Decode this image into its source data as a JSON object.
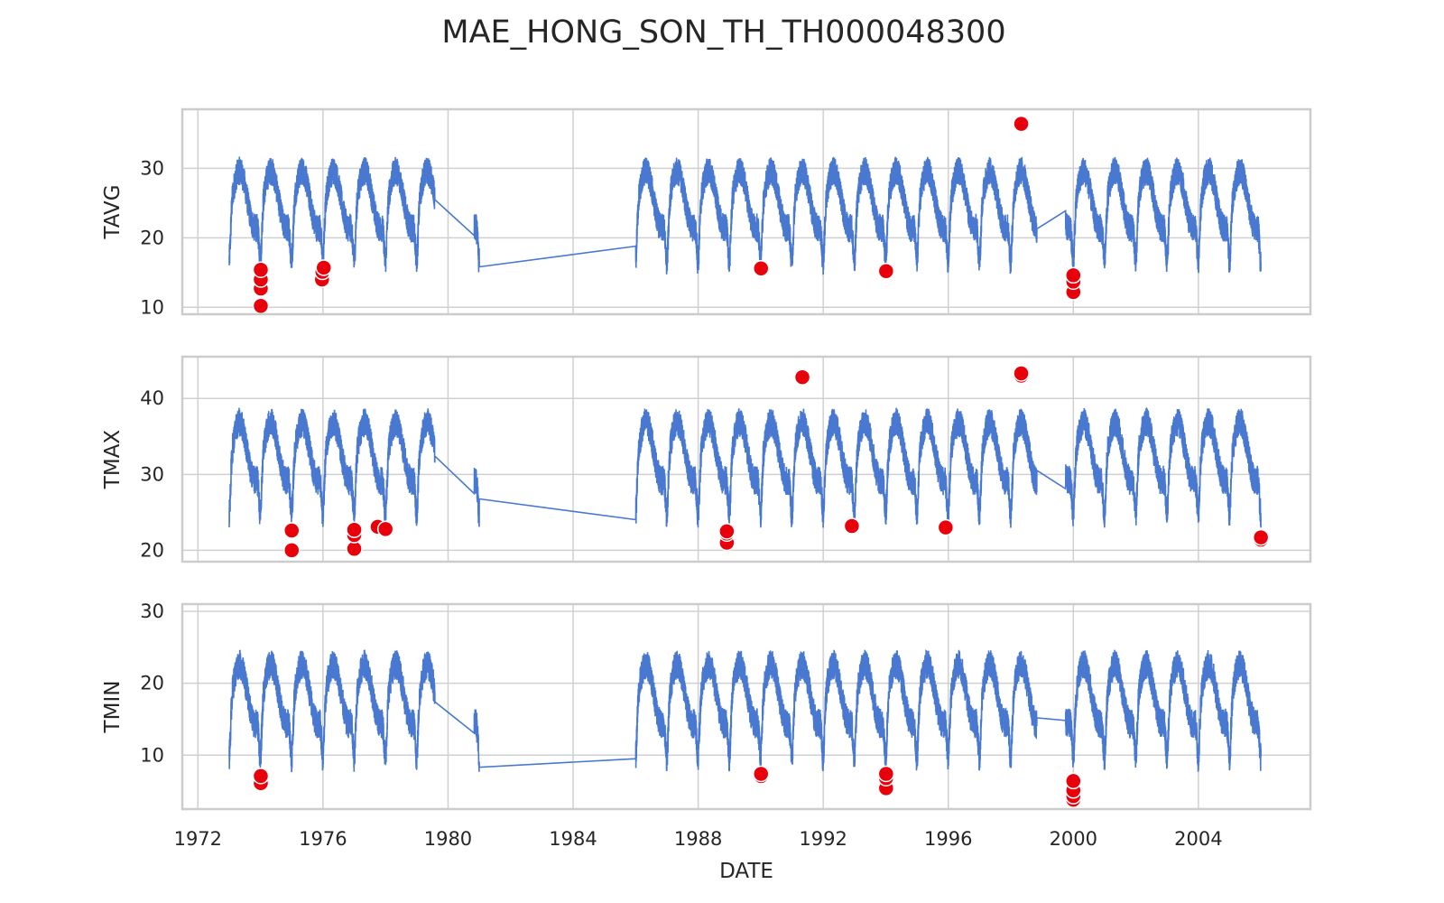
{
  "chart_data": {
    "type": "line",
    "title": "MAE_HONG_SON_TH_TH000048300",
    "xlabel": "DATE",
    "x_range": [
      "1971-07-01",
      "2007-08-01"
    ],
    "x_ticks": [
      "1972",
      "1976",
      "1980",
      "1984",
      "1988",
      "1992",
      "1996",
      "2000",
      "2004"
    ],
    "grid": true,
    "line_color": "#4878CF",
    "marker_color": "#E8000B",
    "data_gaps": [
      [
        "1979-08-01",
        "1980-11-01"
      ],
      [
        "1981-01-01",
        "1986-01-01"
      ],
      [
        "1998-11-01",
        "1999-10-01"
      ]
    ],
    "panels": [
      {
        "ylabel": "TAVG",
        "ylim": [
          9,
          38.5
        ],
        "yticks": [
          "10",
          "20",
          "30"
        ],
        "line_approx": {
          "first_date": "1973-01-01",
          "last_date": "2006-01-01",
          "seasonal_low": 18,
          "seasonal_high": 33,
          "mean": 26
        },
        "anomalies": [
          {
            "date": "1974-01-05",
            "value": 10.2
          },
          {
            "date": "1974-01-05",
            "value": 12.7
          },
          {
            "date": "1974-01-05",
            "value": 14.0
          },
          {
            "date": "1974-01-05",
            "value": 15.4
          },
          {
            "date": "1975-12-20",
            "value": 14.0
          },
          {
            "date": "1975-12-25",
            "value": 15.1
          },
          {
            "date": "1976-01-10",
            "value": 15.7
          },
          {
            "date": "1990-01-05",
            "value": 15.6
          },
          {
            "date": "1994-01-05",
            "value": 15.2
          },
          {
            "date": "1998-05-01",
            "value": 36.4
          },
          {
            "date": "2000-01-01",
            "value": 12.2
          },
          {
            "date": "2000-01-01",
            "value": 13.7
          },
          {
            "date": "2000-01-01",
            "value": 14.6
          }
        ]
      },
      {
        "ylabel": "TMAX",
        "ylim": [
          18.5,
          45.5
        ],
        "yticks": [
          "20",
          "30",
          "40"
        ],
        "line_approx": {
          "first_date": "1973-01-01",
          "last_date": "2006-01-01",
          "seasonal_low": 26,
          "seasonal_high": 40,
          "mean": 32
        },
        "anomalies": [
          {
            "date": "1975-01-01",
            "value": 20.0
          },
          {
            "date": "1975-01-01",
            "value": 22.6
          },
          {
            "date": "1977-01-01",
            "value": 20.2
          },
          {
            "date": "1977-01-01",
            "value": 22.0
          },
          {
            "date": "1977-01-01",
            "value": 22.7
          },
          {
            "date": "1977-10-01",
            "value": 23.1
          },
          {
            "date": "1978-01-01",
            "value": 22.8
          },
          {
            "date": "1988-12-01",
            "value": 21.0
          },
          {
            "date": "1988-12-01",
            "value": 22.2
          },
          {
            "date": "1988-12-01",
            "value": 22.5
          },
          {
            "date": "1991-05-01",
            "value": 42.8
          },
          {
            "date": "1992-12-01",
            "value": 23.2
          },
          {
            "date": "1995-12-01",
            "value": 23.0
          },
          {
            "date": "1998-05-01",
            "value": 43.0
          },
          {
            "date": "1998-05-01",
            "value": 43.3
          },
          {
            "date": "2006-01-01",
            "value": 21.4
          },
          {
            "date": "2006-01-01",
            "value": 21.7
          }
        ]
      },
      {
        "ylabel": "TMIN",
        "ylim": [
          2.5,
          31
        ],
        "yticks": [
          "10",
          "20",
          "30"
        ],
        "line_approx": {
          "first_date": "1973-01-01",
          "last_date": "2006-01-01",
          "seasonal_low": 11,
          "seasonal_high": 26,
          "mean": 20
        },
        "anomalies": [
          {
            "date": "1974-01-05",
            "value": 6.1
          },
          {
            "date": "1974-01-05",
            "value": 7.1
          },
          {
            "date": "1990-01-05",
            "value": 7.1
          },
          {
            "date": "1990-01-05",
            "value": 7.4
          },
          {
            "date": "1994-01-05",
            "value": 5.4
          },
          {
            "date": "1994-01-05",
            "value": 6.8
          },
          {
            "date": "1994-01-05",
            "value": 7.4
          },
          {
            "date": "2000-01-01",
            "value": 3.8
          },
          {
            "date": "2000-01-01",
            "value": 4.3
          },
          {
            "date": "2000-01-01",
            "value": 5.1
          },
          {
            "date": "2000-01-01",
            "value": 6.4
          }
        ]
      }
    ]
  }
}
